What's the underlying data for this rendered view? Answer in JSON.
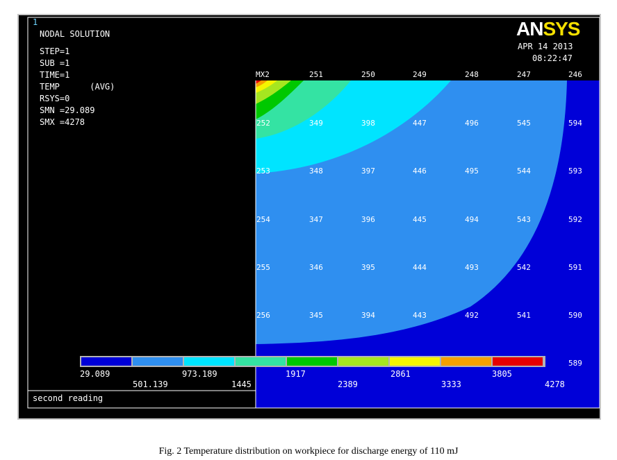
{
  "window": {
    "number": "1"
  },
  "legend_info": {
    "title": "NODAL SOLUTION",
    "step": "STEP=1",
    "sub": "SUB =1",
    "time": "TIME=1",
    "temp": "TEMP      (AVG)",
    "rsys": "RSYS=0",
    "smn": "SMN =29.089",
    "smx": "SMX =4278"
  },
  "brand": {
    "logo_left": "AN",
    "logo_right": "SYS",
    "date": "APR 14 2013",
    "time": "08:22:47"
  },
  "footer_note": "second reading",
  "contour_bar": {
    "colors": [
      "#0000d8",
      "#2f8ff0",
      "#00e4ff",
      "#34e3a3",
      "#00c800",
      "#a6e620",
      "#f5f500",
      "#f5a000",
      "#e60000"
    ],
    "labels_top": [
      "29.089",
      "973.189",
      "1917",
      "2861",
      "3805"
    ],
    "labels_bottom": [
      "501.139",
      "1445",
      "2389",
      "3333",
      "4278"
    ]
  },
  "node_labels": {
    "top_row": [
      "MX2",
      "251",
      "250",
      "249",
      "248",
      "247",
      "246"
    ],
    "rows": [
      [
        "252",
        "349",
        "398",
        "447",
        "496",
        "545",
        "594"
      ],
      [
        "253",
        "348",
        "397",
        "446",
        "495",
        "544",
        "593"
      ],
      [
        "254",
        "347",
        "396",
        "445",
        "494",
        "543",
        "592"
      ],
      [
        "255",
        "346",
        "395",
        "444",
        "493",
        "542",
        "591"
      ],
      [
        "256",
        "345",
        "394",
        "443",
        "492",
        "541",
        "590"
      ]
    ],
    "last": "589"
  },
  "caption": "Fig. 2 Temperature distribution on workpiece for discharge energy of 110 mJ"
}
